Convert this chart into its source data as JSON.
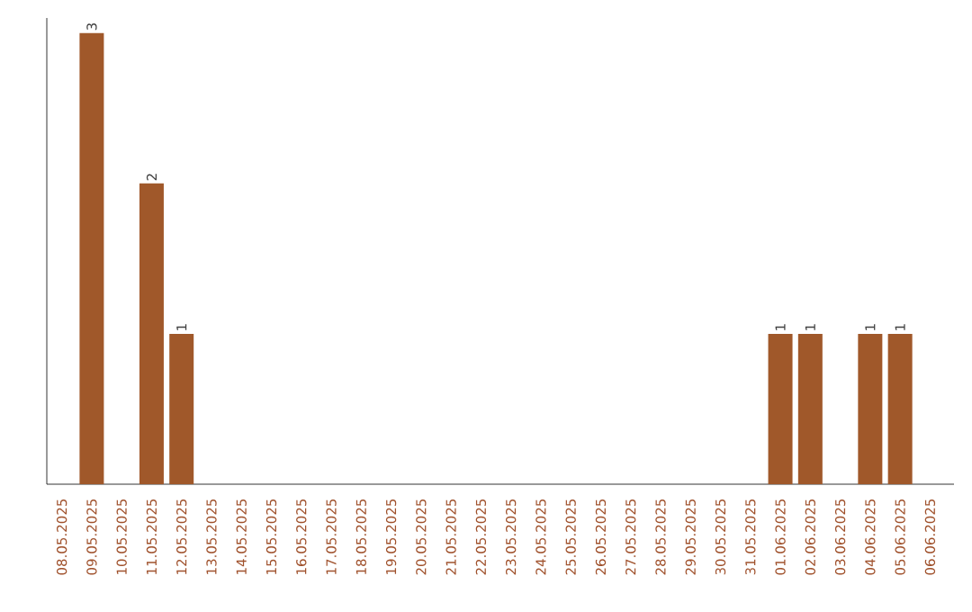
{
  "chart_data": {
    "type": "bar",
    "categories": [
      "08.05.2025",
      "09.05.2025",
      "10.05.2025",
      "11.05.2025",
      "12.05.2025",
      "13.05.2025",
      "14.05.2025",
      "15.05.2025",
      "16.05.2025",
      "17.05.2025",
      "18.05.2025",
      "19.05.2025",
      "20.05.2025",
      "21.05.2025",
      "22.05.2025",
      "23.05.2025",
      "24.05.2025",
      "25.05.2025",
      "26.05.2025",
      "27.05.2025",
      "28.05.2025",
      "29.05.2025",
      "30.05.2025",
      "31.05.2025",
      "01.06.2025",
      "02.06.2025",
      "03.06.2025",
      "04.06.2025",
      "05.06.2025",
      "06.06.2025"
    ],
    "values": [
      0,
      3,
      0,
      2,
      1,
      0,
      0,
      0,
      0,
      0,
      0,
      0,
      0,
      0,
      0,
      0,
      0,
      0,
      0,
      0,
      0,
      0,
      0,
      0,
      1,
      1,
      0,
      1,
      1,
      0
    ],
    "value_labels": [
      null,
      "3",
      null,
      "2",
      "1",
      null,
      null,
      null,
      null,
      null,
      null,
      null,
      null,
      null,
      null,
      null,
      null,
      null,
      null,
      null,
      null,
      null,
      null,
      null,
      "1",
      "1",
      null,
      "1",
      "1",
      null
    ],
    "color": "#a0582a",
    "ylim": [
      0,
      3.1
    ],
    "tick_labels": "x",
    "grid": false
  }
}
